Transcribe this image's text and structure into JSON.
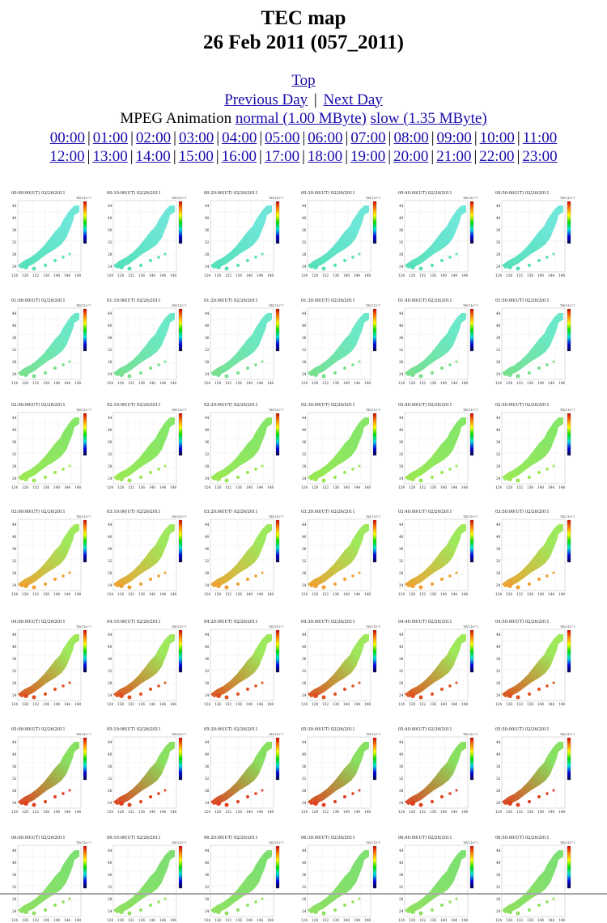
{
  "page": {
    "title": "TEC map",
    "subtitle": "26 Feb 2011 (057_2011)"
  },
  "nav": {
    "top": "Top",
    "previous_day": "Previous Day",
    "separator": "|",
    "next_day": "Next Day",
    "mpeg_label": "MPEG Animation",
    "normal_link": "normal (1.00 MByte)",
    "slow_link": "slow (1.35 MByte)"
  },
  "hours": [
    "00:00",
    "01:00",
    "02:00",
    "03:00",
    "04:00",
    "05:00",
    "06:00",
    "07:00",
    "08:00",
    "09:00",
    "10:00",
    "11:00",
    "12:00",
    "13:00",
    "14:00",
    "15:00",
    "16:00",
    "17:00",
    "18:00",
    "19:00",
    "20:00",
    "21:00",
    "22:00",
    "23:00"
  ],
  "maps": {
    "date": "02/26/2011",
    "unit_label": "TEC(10^16m^-2)",
    "lat_ticks": [
      "44",
      "40",
      "36",
      "32",
      "28",
      "24"
    ],
    "lon_ticks": [
      "124",
      "128",
      "132",
      "136",
      "140",
      "144",
      "148"
    ],
    "times": [
      "00:00:00(UT)",
      "00:10:00(UT)",
      "00:20:00(UT)",
      "00:30:00(UT)",
      "00:40:00(UT)",
      "00:50:00(UT)",
      "01:00:00(UT)",
      "01:10:00(UT)",
      "01:20:00(UT)",
      "01:30:00(UT)",
      "01:40:00(UT)",
      "01:50:00(UT)",
      "02:00:00(UT)",
      "02:10:00(UT)",
      "02:20:00(UT)",
      "02:30:00(UT)",
      "02:40:00(UT)",
      "02:50:00(UT)",
      "03:00:00(UT)",
      "03:10:00(UT)",
      "03:20:00(UT)",
      "03:30:00(UT)",
      "03:40:00(UT)",
      "03:50:00(UT)",
      "04:00:00(UT)",
      "04:10:00(UT)",
      "04:20:00(UT)",
      "04:30:00(UT)",
      "04:40:00(UT)",
      "04:50:00(UT)",
      "05:00:00(UT)",
      "05:10:00(UT)",
      "05:20:00(UT)",
      "05:30:00(UT)",
      "05:40:00(UT)",
      "05:50:00(UT)",
      "06:00:00(UT)",
      "06:10:00(UT)",
      "06:20:00(UT)",
      "06:30:00(UT)",
      "06:40:00(UT)",
      "06:50:00(UT)"
    ],
    "row_colors": [
      {
        "north": "#6ee6d8",
        "south": "#55e0b8"
      },
      {
        "north": "#6ae8c8",
        "south": "#78e08c"
      },
      {
        "north": "#86e668",
        "south": "#9be852"
      },
      {
        "north": "#9ee85c",
        "south": "#f0a030"
      },
      {
        "north": "#9ee85c",
        "south": "#e05020"
      },
      {
        "north": "#88e060",
        "south": "#e04020"
      },
      {
        "north": "#7ee070",
        "south": "#90e060"
      }
    ]
  }
}
